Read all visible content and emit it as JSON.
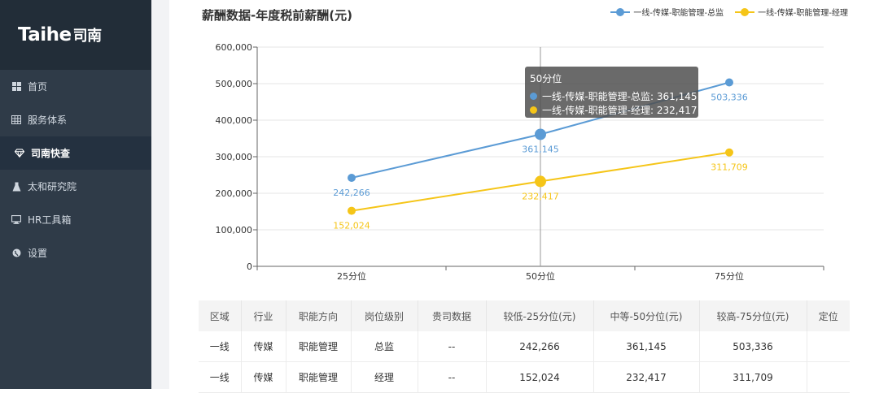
{
  "brand": {
    "name": "Taihe",
    "name_cn": "司南"
  },
  "sidebar": {
    "items": [
      {
        "label": "首页",
        "icon": "grid-icon",
        "active": false
      },
      {
        "label": "服务体系",
        "icon": "table-icon",
        "active": false
      },
      {
        "label": "司南快查",
        "icon": "diamond-icon",
        "active": true
      },
      {
        "label": "太和研究院",
        "icon": "flask-icon",
        "active": false
      },
      {
        "label": "HR工具箱",
        "icon": "monitor-icon",
        "active": false
      },
      {
        "label": "设置",
        "icon": "globe-icon",
        "active": false
      }
    ]
  },
  "chart": {
    "title": "薪酬数据-年度税前薪酬(元)",
    "legend": [
      {
        "label": "一线-传媒-职能管理-总监",
        "color": "#5b9bd5"
      },
      {
        "label": "一线-传媒-职能管理-经理",
        "color": "#f5c518"
      }
    ],
    "tooltip": {
      "title": "50分位",
      "rows": [
        {
          "label": "一线-传媒-职能管理-总监: 361,145",
          "color": "#5b9bd5"
        },
        {
          "label": "一线-传媒-职能管理-经理: 232,417",
          "color": "#f5c518"
        }
      ]
    }
  },
  "chart_data": {
    "type": "line",
    "title": "薪酬数据-年度税前薪酬(元)",
    "categories": [
      "25分位",
      "50分位",
      "75分位"
    ],
    "series": [
      {
        "name": "一线-传媒-职能管理-总监",
        "color": "#5b9bd5",
        "values": [
          242266,
          361145,
          503336
        ],
        "labels": [
          "242,266",
          "361,145",
          "503,336"
        ]
      },
      {
        "name": "一线-传媒-职能管理-经理",
        "color": "#f5c518",
        "values": [
          152024,
          232417,
          311709
        ],
        "labels": [
          "152,024",
          "232,417",
          "311,709"
        ]
      }
    ],
    "ylim": [
      0,
      600000
    ],
    "yticks": [
      0,
      100000,
      200000,
      300000,
      400000,
      500000,
      600000
    ],
    "ytick_labels": [
      "0",
      "100,000",
      "200,000",
      "300,000",
      "400,000",
      "500,000",
      "600,000"
    ],
    "grid": true,
    "legend_position": "top-right",
    "highlighted_category": "50分位"
  },
  "table": {
    "headers": [
      "区域",
      "行业",
      "职能方向",
      "岗位级别",
      "贵司数据",
      "较低-25分位(元)",
      "中等-50分位(元)",
      "较高-75分位(元)",
      "定位"
    ],
    "rows": [
      [
        "一线",
        "传媒",
        "职能管理",
        "总监",
        "--",
        "242,266",
        "361,145",
        "503,336",
        ""
      ],
      [
        "一线",
        "传媒",
        "职能管理",
        "经理",
        "--",
        "152,024",
        "232,417",
        "311,709",
        ""
      ]
    ]
  }
}
